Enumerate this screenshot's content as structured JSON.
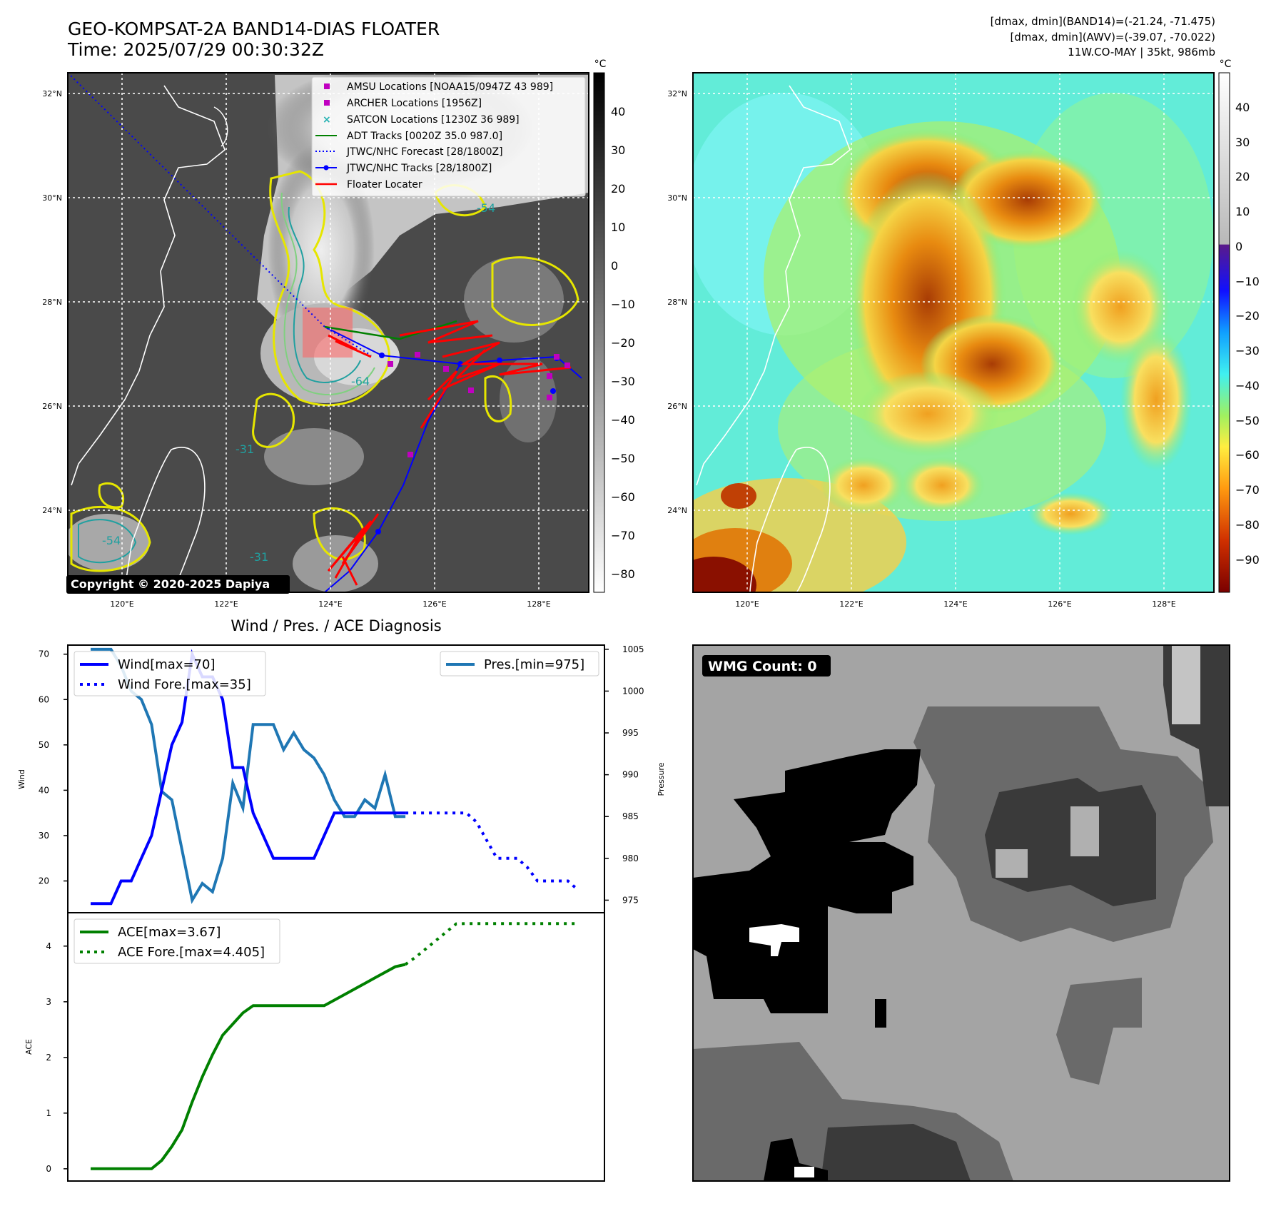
{
  "header": {
    "title_line1": "GEO-KOMPSAT-2A BAND14-DIAS FLOATER",
    "title_line2": "Time: 2025/07/29 00:30:32Z",
    "stats_line1": "[dmax, dmin](BAND14)=(-21.24, -71.475)",
    "stats_line2": "[dmax, dmin](AWV)=(-39.07, -70.022)",
    "stats_line3": "11W.CO-MAY | 35kt, 986mb"
  },
  "map": {
    "lat_labels": [
      "32°N",
      "30°N",
      "28°N",
      "26°N",
      "24°N"
    ],
    "lon_labels": [
      "120°E",
      "122°E",
      "124°E",
      "126°E",
      "128°E"
    ],
    "copyright": "Copyright © 2020-2025 Dapiya",
    "contour_labels": [
      "-54",
      "-64",
      "-31"
    ],
    "legend": [
      {
        "label": "AMSU Locations [NOAA15/0947Z 43 989]",
        "color": "#c000c0",
        "marker": "square"
      },
      {
        "label": "ARCHER Locations [1956Z]",
        "color": "#c000c0",
        "marker": "square"
      },
      {
        "label": "SATCON Locations [1230Z 36 989]",
        "color": "#20b0b0",
        "marker": "x"
      },
      {
        "label": "ADT Tracks [0020Z 35.0 987.0]",
        "color": "#008000",
        "marker": "line"
      },
      {
        "label": "JTWC/NHC Forecast [28/1800Z]",
        "color": "#0000ff",
        "marker": "dotted"
      },
      {
        "label": "JTWC/NHC Tracks [28/1800Z]",
        "color": "#0000ff",
        "marker": "line-dot"
      },
      {
        "label": "Floater Locater",
        "color": "#ff0000",
        "marker": "line"
      }
    ]
  },
  "colorbar_gray": {
    "unit": "°C",
    "ticks": [
      "40",
      "30",
      "20",
      "10",
      "0",
      "−10",
      "−20",
      "−30",
      "−40",
      "−50",
      "−60",
      "−70",
      "−80"
    ]
  },
  "colorbar_color": {
    "unit": "°C",
    "ticks": [
      "40",
      "30",
      "20",
      "10",
      "0",
      "−10",
      "−20",
      "−30",
      "−40",
      "−50",
      "−60",
      "−70",
      "−80",
      "−90"
    ]
  },
  "wmg": {
    "label": "WMG Count: 0"
  },
  "chart_data": [
    {
      "type": "line",
      "title": "Wind / Pres. / ACE Diagnosis",
      "ylabel": "Wind",
      "ylabel_right": "Pressure",
      "ylim": [
        13,
        72
      ],
      "ylim_right": [
        973.5,
        1005.5
      ],
      "yticks": [
        20,
        30,
        40,
        50,
        60,
        70
      ],
      "yticks_right": [
        975,
        980,
        985,
        990,
        995,
        1000,
        1005
      ],
      "x": [
        0,
        1,
        2,
        3,
        4,
        5,
        6,
        7,
        8,
        9,
        10,
        11,
        12,
        13,
        14,
        15,
        16,
        17,
        18,
        19,
        20,
        21,
        22,
        23,
        24,
        25,
        26,
        27,
        28,
        29,
        30,
        31,
        32,
        33,
        34,
        35,
        36,
        37,
        38,
        39,
        40,
        41,
        42,
        43,
        44,
        45,
        46,
        47,
        48
      ],
      "series": [
        {
          "name": "Wind[max=70]",
          "axis": "left",
          "style": "solid",
          "color": "#0000ff",
          "x": [
            0,
            1,
            2,
            3,
            4,
            5,
            6,
            7,
            8,
            9,
            10,
            11,
            12,
            13,
            14,
            15,
            16,
            17,
            18,
            19,
            20,
            21,
            22,
            23,
            24,
            25,
            26,
            27,
            28,
            29,
            30,
            31
          ],
          "values": [
            15,
            15,
            15,
            20,
            20,
            25,
            30,
            40,
            50,
            55,
            70,
            65,
            65,
            60,
            45,
            45,
            35,
            30,
            25,
            25,
            25,
            25,
            25,
            30,
            35,
            35,
            35,
            35,
            35,
            35,
            35,
            35
          ]
        },
        {
          "name": "Wind Fore.[max=35]",
          "axis": "left",
          "style": "dotted",
          "color": "#0000ff",
          "x": [
            31,
            32,
            33,
            34,
            35,
            36,
            37,
            38,
            39,
            40,
            41,
            42,
            43,
            44,
            45,
            46,
            47,
            48
          ],
          "values": [
            35,
            35,
            35,
            35,
            35,
            35,
            35,
            33,
            29,
            25,
            25,
            25,
            23,
            20,
            20,
            20,
            20,
            18
          ]
        },
        {
          "name": "Pres.[min=975]",
          "axis": "right",
          "style": "solid",
          "color": "#1f77b4",
          "x": [
            0,
            1,
            2,
            3,
            4,
            5,
            6,
            7,
            8,
            9,
            10,
            11,
            12,
            13,
            14,
            15,
            16,
            17,
            18,
            19,
            20,
            21,
            22,
            23,
            24,
            25,
            26,
            27,
            28,
            29,
            30,
            31
          ],
          "values": [
            1005,
            1005,
            1005,
            1003,
            1000,
            999,
            996,
            988,
            987,
            981,
            975,
            977,
            976,
            980,
            989,
            986,
            996,
            996,
            996,
            993,
            995,
            993,
            992,
            990,
            987,
            985,
            985,
            987,
            986,
            990,
            985,
            985
          ]
        }
      ]
    },
    {
      "type": "line",
      "ylabel": "ACE",
      "ylim": [
        -0.22,
        4.6
      ],
      "yticks": [
        0,
        1,
        2,
        3,
        4
      ],
      "series": [
        {
          "name": "ACE[max=3.67]",
          "style": "solid",
          "color": "#008000",
          "x": [
            0,
            1,
            2,
            3,
            4,
            5,
            6,
            7,
            8,
            9,
            10,
            11,
            12,
            13,
            14,
            15,
            16,
            17,
            18,
            19,
            20,
            21,
            22,
            23,
            24,
            25,
            26,
            27,
            28,
            29,
            30,
            31
          ],
          "values": [
            0,
            0,
            0,
            0,
            0,
            0,
            0,
            0.15,
            0.4,
            0.7,
            1.2,
            1.65,
            2.05,
            2.4,
            2.6,
            2.8,
            2.93,
            2.93,
            2.93,
            2.93,
            2.93,
            2.93,
            2.93,
            2.93,
            3.03,
            3.13,
            3.23,
            3.33,
            3.43,
            3.53,
            3.63,
            3.67
          ]
        },
        {
          "name": "ACE Fore.[max=4.405]",
          "style": "dotted",
          "color": "#008000",
          "x": [
            31,
            32,
            33,
            34,
            35,
            36,
            37,
            38,
            39,
            40,
            41,
            42,
            43,
            44,
            45,
            46,
            47,
            48
          ],
          "values": [
            3.67,
            3.8,
            3.95,
            4.1,
            4.25,
            4.4,
            4.405,
            4.405,
            4.405,
            4.405,
            4.405,
            4.405,
            4.405,
            4.405,
            4.405,
            4.405,
            4.405,
            4.405
          ]
        }
      ]
    }
  ]
}
